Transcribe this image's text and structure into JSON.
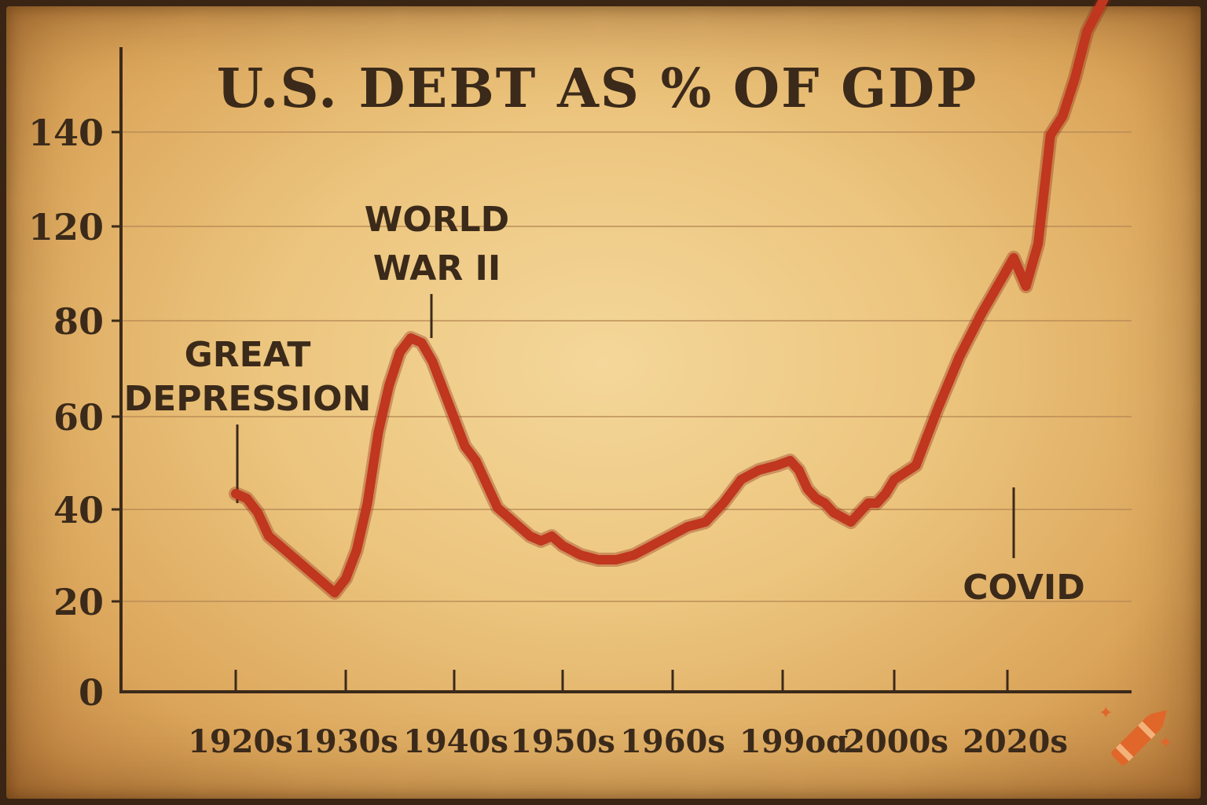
{
  "chart_data": {
    "type": "line",
    "title": "U.S. DEBT AS % OF GDP",
    "xlabel": "",
    "ylabel": "",
    "ylim": [
      0,
      150
    ],
    "y_ticks": [
      "0",
      "20",
      "40",
      "60",
      "80",
      "120",
      "140"
    ],
    "x_ticks": [
      "1920s",
      "1930s",
      "1940s",
      "1950s",
      "1960s",
      "199oɑ",
      "2000s",
      "2020s"
    ],
    "grid": true,
    "series": [
      {
        "color": "#c0361e",
        "x": [
          1920,
          1921,
          1922,
          1923,
          1924,
          1925,
          1926,
          1927,
          1928,
          1929,
          1930,
          1931,
          1932,
          1933,
          1934,
          1935,
          1936,
          1937,
          1938,
          1939,
          1940,
          1941,
          1942,
          1943,
          1944,
          1945,
          1946,
          1947,
          1948,
          1949,
          1950,
          1952,
          1954,
          1956,
          1958,
          1960,
          1962,
          1964,
          1966,
          1968,
          1970,
          1972,
          1974,
          1976,
          1978,
          1980,
          1982,
          1984,
          1986,
          1988,
          1990,
          1992,
          1994,
          1996,
          1998,
          2000,
          2002,
          2004,
          2006,
          2008,
          2010,
          2011,
          2012,
          2013,
          2014,
          2015,
          2016,
          2017,
          2018,
          2019,
          2020
        ],
        "values": [
          42,
          41,
          38,
          33,
          31,
          29,
          27,
          25,
          23,
          21,
          24,
          30,
          40,
          55,
          65,
          72,
          75,
          74,
          70,
          64,
          58,
          52,
          49,
          44,
          39,
          37,
          35,
          33,
          32,
          33,
          31,
          29,
          28,
          28,
          29,
          31,
          33,
          35,
          36,
          40,
          45,
          47,
          48,
          49,
          47,
          43,
          41,
          40,
          38,
          37,
          36,
          38,
          40,
          40,
          42,
          45,
          48,
          60,
          71,
          80,
          88,
          92,
          86,
          95,
          118,
          122,
          130,
          140,
          145,
          150,
          152
        ]
      }
    ],
    "annotations": [
      {
        "text_lines": [
          "GREAT",
          "DEPRESSION"
        ],
        "x": 1920,
        "y": 42
      },
      {
        "text_lines": [
          "WORLD",
          "WAR II"
        ],
        "x": 1938,
        "y": 75
      },
      {
        "text_lines": [
          "COVID"
        ],
        "x": 2011,
        "y": 92
      }
    ]
  },
  "logo": {
    "icon": "crayon-icon"
  }
}
